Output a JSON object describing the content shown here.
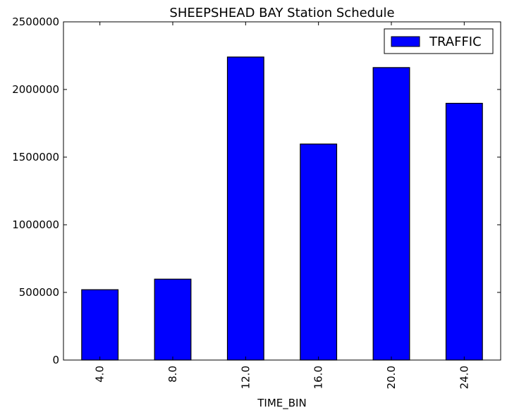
{
  "chart_data": {
    "type": "bar",
    "title": "SHEEPSHEAD BAY Station Schedule",
    "xlabel": "TIME_BIN",
    "ylabel": "",
    "categories": [
      "4.0",
      "8.0",
      "12.0",
      "16.0",
      "20.0",
      "24.0"
    ],
    "series": [
      {
        "name": "TRAFFIC",
        "color": "#0000ff",
        "values": [
          520000,
          598000,
          2240000,
          1597000,
          2162000,
          1898000
        ]
      }
    ],
    "ylim": [
      0,
      2500000
    ],
    "yticks": [
      0,
      500000,
      1000000,
      1500000,
      2000000,
      2500000
    ],
    "ytick_labels": [
      "0",
      "500000",
      "1000000",
      "1500000",
      "2000000",
      "2500000"
    ],
    "grid": false,
    "legend_position": "top-right"
  }
}
